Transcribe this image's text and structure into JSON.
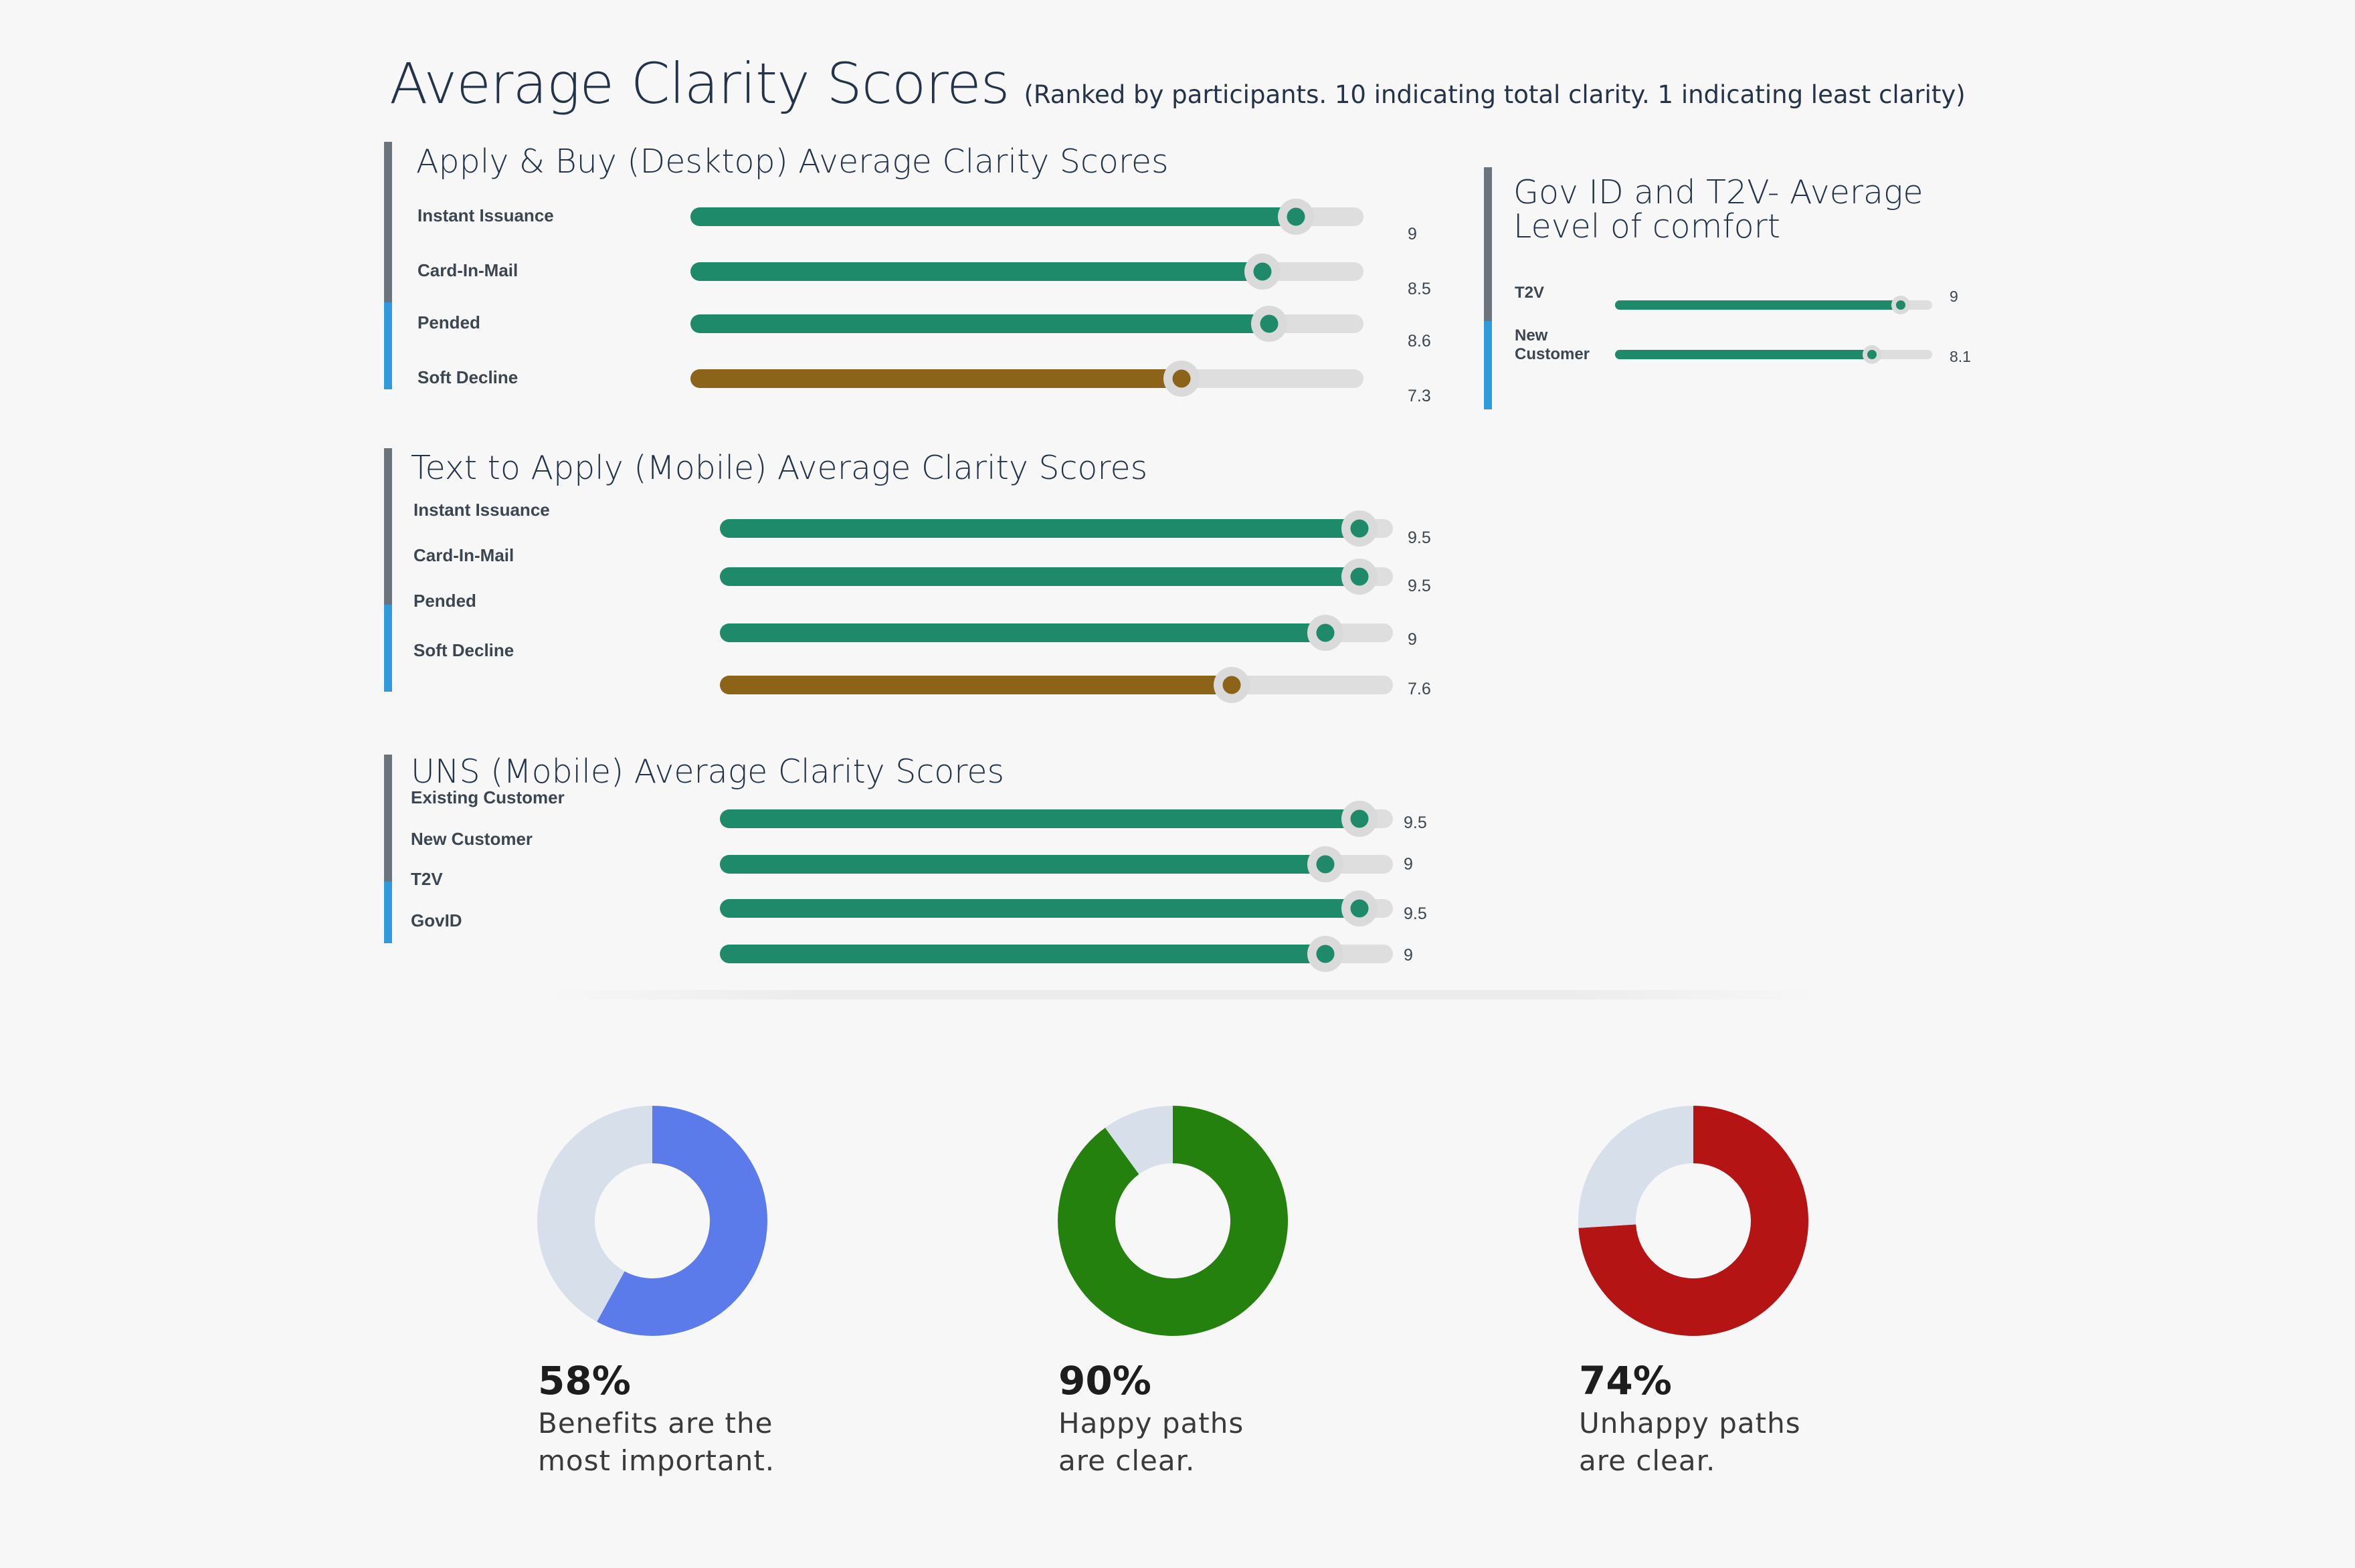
{
  "page": {
    "title": "Average Clarity Scores",
    "subtitle": "(Ranked by participants. 10 indicating total clarity. 1 indicating least clarity)"
  },
  "colors": {
    "green": "#1f8a6a",
    "brown": "#8b6419",
    "track": "#dedede",
    "accent_gray": "#6b737b",
    "accent_blue": "#2f9bdc"
  },
  "chart_data": [
    {
      "type": "bar",
      "title": "Apply & Buy (Desktop) Average Clarity Scores",
      "categories": [
        "Instant Issuance",
        "Card-In-Mail",
        "Pended",
        "Soft Decline"
      ],
      "values": [
        9,
        8.5,
        8.6,
        7.3
      ],
      "value_labels": [
        "9",
        "8.5",
        "8.6",
        "7.3"
      ],
      "ylim": [
        0,
        10
      ]
    },
    {
      "type": "bar",
      "title": "Gov ID and T2V- Average Level of comfort",
      "categories": [
        "T2V",
        "New Customer"
      ],
      "values": [
        9,
        8.1
      ],
      "value_labels": [
        "9",
        "8.1"
      ],
      "ylim": [
        0,
        10
      ]
    },
    {
      "type": "bar",
      "title": "Text to Apply (Mobile) Average Clarity Scores",
      "categories": [
        "Instant Issuance",
        "Card-In-Mail",
        "Pended",
        "Soft Decline"
      ],
      "values": [
        9.5,
        9.5,
        9,
        7.6
      ],
      "value_labels": [
        "9.5",
        "9.5",
        "9",
        "7.6"
      ],
      "ylim": [
        0,
        10
      ]
    },
    {
      "type": "bar",
      "title": "UNS (Mobile) Average Clarity Scores",
      "categories": [
        "Existing Customer",
        "New Customer",
        "T2V",
        "GovID"
      ],
      "values": [
        9.5,
        9,
        9.5,
        9
      ],
      "value_labels": [
        "9.5",
        "9",
        "9.5",
        "9"
      ],
      "ylim": [
        0,
        10
      ]
    },
    {
      "type": "pie",
      "title": "",
      "categories": [
        "Benefits are the most important.",
        "Other"
      ],
      "values": [
        58,
        42
      ],
      "percent_label": "58%",
      "caption_lines": [
        "Benefits are the",
        "most important."
      ],
      "colors": [
        "#5b7bea",
        "#d6dfea"
      ]
    },
    {
      "type": "pie",
      "title": "",
      "categories": [
        "Happy paths are clear.",
        "Other"
      ],
      "values": [
        90,
        10
      ],
      "percent_label": "90%",
      "caption_lines": [
        "Happy paths",
        "are clear."
      ],
      "colors": [
        "#24810d",
        "#d6dfea"
      ]
    },
    {
      "type": "pie",
      "title": "",
      "categories": [
        "Unhappy paths are clear.",
        "Other"
      ],
      "values": [
        74,
        26
      ],
      "percent_label": "74%",
      "caption_lines": [
        "Unhappy paths",
        "are clear."
      ],
      "colors": [
        "#b51414",
        "#d6dfea"
      ]
    }
  ]
}
